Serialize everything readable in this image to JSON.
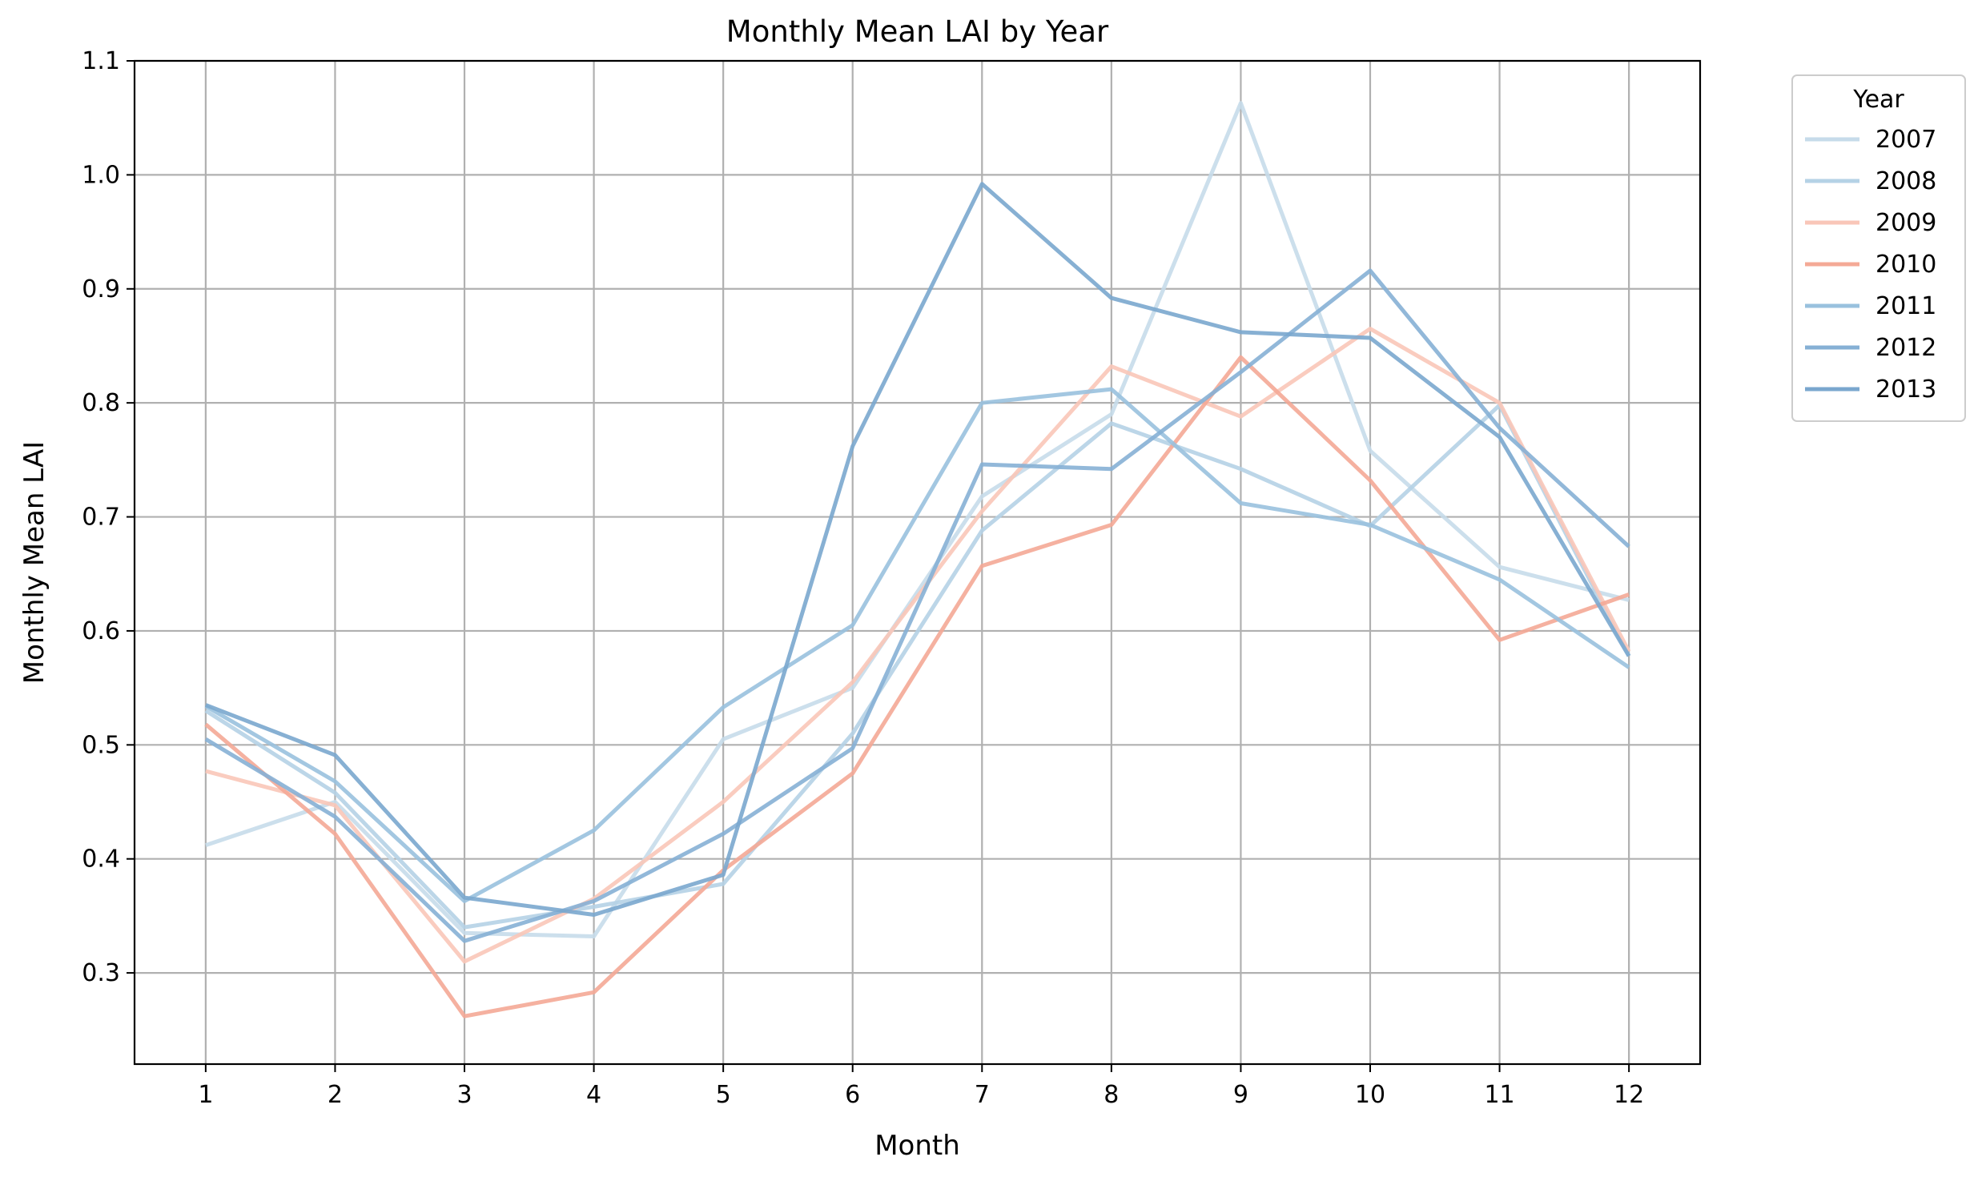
{
  "chart_data": {
    "type": "line",
    "title": "Monthly Mean LAI by Year",
    "xlabel": "Month",
    "ylabel": "Monthly Mean LAI",
    "x": [
      1,
      2,
      3,
      4,
      5,
      6,
      7,
      8,
      9,
      10,
      11,
      12
    ],
    "xlim": [
      0.45,
      12.55
    ],
    "ylim": [
      0.22,
      1.1
    ],
    "yticks": [
      0.3,
      0.4,
      0.5,
      0.6,
      0.7,
      0.8,
      0.9,
      1.0,
      1.1
    ],
    "yticklabels": [
      "0.3",
      "0.4",
      "0.5",
      "0.6",
      "0.7",
      "0.8",
      "0.9",
      "1.0",
      "1.1"
    ],
    "xticklabels": [
      "1",
      "2",
      "3",
      "4",
      "5",
      "6",
      "7",
      "8",
      "9",
      "10",
      "11",
      "12"
    ],
    "grid": true,
    "legend": {
      "title": "Year",
      "placement": "outside-top-right"
    },
    "series": [
      {
        "name": "2007",
        "color": "#c6dbea",
        "values": [
          0.412,
          0.45,
          0.335,
          0.332,
          0.505,
          0.55,
          0.718,
          0.79,
          1.063,
          0.758,
          0.656,
          0.627
        ]
      },
      {
        "name": "2008",
        "color": "#b5d2e6",
        "values": [
          0.53,
          0.458,
          0.34,
          0.358,
          0.378,
          0.51,
          0.688,
          0.782,
          0.742,
          0.692,
          0.798,
          0.578
        ]
      },
      {
        "name": "2009",
        "color": "#f9c6b8",
        "values": [
          0.477,
          0.447,
          0.31,
          0.365,
          0.45,
          0.555,
          0.705,
          0.832,
          0.788,
          0.865,
          0.8,
          0.582
        ]
      },
      {
        "name": "2010",
        "color": "#f4a996",
        "values": [
          0.518,
          0.422,
          0.262,
          0.283,
          0.39,
          0.475,
          0.657,
          0.693,
          0.84,
          0.732,
          0.592,
          0.632
        ]
      },
      {
        "name": "2011",
        "color": "#99c1de",
        "values": [
          0.534,
          0.468,
          0.363,
          0.425,
          0.533,
          0.605,
          0.8,
          0.812,
          0.712,
          0.693,
          0.645,
          0.568
        ]
      },
      {
        "name": "2012",
        "color": "#86b0d5",
        "values": [
          0.505,
          0.437,
          0.328,
          0.363,
          0.422,
          0.497,
          0.746,
          0.742,
          0.827,
          0.916,
          0.778,
          0.674
        ]
      },
      {
        "name": "2013",
        "color": "#7aa7ce",
        "values": [
          0.535,
          0.491,
          0.366,
          0.351,
          0.386,
          0.762,
          0.992,
          0.892,
          0.862,
          0.857,
          0.77,
          0.578
        ]
      }
    ]
  }
}
